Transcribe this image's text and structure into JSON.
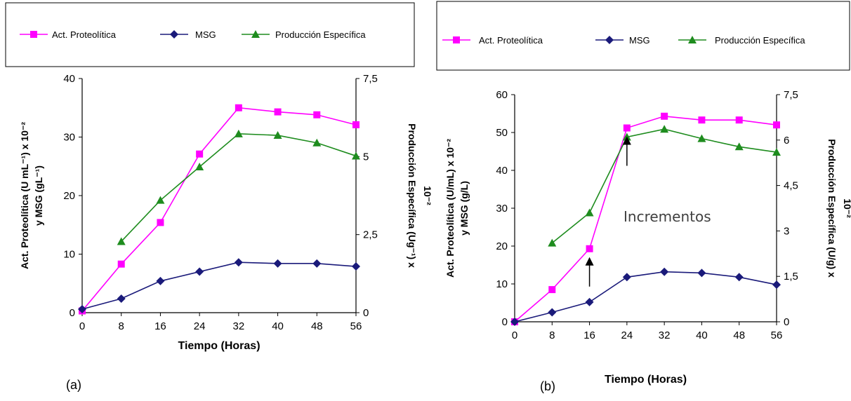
{
  "colors": {
    "act": "#ff00ff",
    "msg": "#1a1a7a",
    "prod": "#1e8c1e",
    "axis": "#000000"
  },
  "chart_data": [
    {
      "type": "line",
      "panel_label": "(a)",
      "xlabel": "Tiempo (Horas)",
      "ylabel": "Act. Proteolítica (U mL⁻¹) x 10⁻²  y MSG (gL⁻¹)",
      "y2label": "Producción Específica (Ug⁻¹) x 10⁻²",
      "x_ticks": [
        "0",
        "8",
        "16",
        "24",
        "32",
        "40",
        "48",
        "56"
      ],
      "xlim": [
        0,
        56
      ],
      "ylim": [
        0,
        40
      ],
      "y_ticks": [
        "0",
        "10",
        "20",
        "30",
        "40"
      ],
      "y2lim": [
        0,
        7.5
      ],
      "y2_ticks": [
        "0",
        "2,5",
        "5",
        "7,5"
      ],
      "legend": [
        "Act. Proteolítica",
        "MSG",
        "Producción Específica"
      ],
      "series": [
        {
          "name": "Act. Proteolítica",
          "marker": "square",
          "axis": "left",
          "x": [
            0,
            8,
            16,
            24,
            32,
            40,
            48,
            56
          ],
          "y": [
            0.3,
            8.3,
            15.4,
            27.1,
            35,
            34.3,
            33.8,
            32.1
          ]
        },
        {
          "name": "MSG",
          "marker": "diamond",
          "axis": "left",
          "x": [
            0,
            8,
            16,
            24,
            32,
            40,
            48,
            56
          ],
          "y": [
            0.6,
            2.4,
            5.4,
            7,
            8.6,
            8.4,
            8.4,
            7.9
          ]
        },
        {
          "name": "Producción Específica",
          "marker": "triangle",
          "axis": "right",
          "x": [
            8,
            16,
            24,
            32,
            40,
            48,
            56
          ],
          "y": [
            2.28,
            3.6,
            4.67,
            5.73,
            5.68,
            5.44,
            5.02
          ]
        }
      ]
    },
    {
      "type": "line",
      "panel_label": "(b)",
      "xlabel": "Tiempo (Horas)",
      "ylabel": "Act. Proteolítica (U/mL) x 10⁻²  y MSG (g/L)",
      "y2label": "Producción Específica (U/g) x 10⁻²",
      "x_ticks": [
        "0",
        "8",
        "16",
        "24",
        "32",
        "40",
        "48",
        "56"
      ],
      "xlim": [
        0,
        56
      ],
      "ylim": [
        0,
        60
      ],
      "y_ticks": [
        "0",
        "10",
        "20",
        "30",
        "40",
        "50",
        "60"
      ],
      "y2lim": [
        0,
        7.5
      ],
      "y2_ticks": [
        "0",
        "1,5",
        "3",
        "4,5",
        "6",
        "7,5"
      ],
      "legend": [
        "Act. Proteolítica",
        "MSG",
        "Producción Específica"
      ],
      "annotation": "Incrementos",
      "arrows_at_x": [
        16,
        24
      ],
      "series": [
        {
          "name": "Act. Proteolítica",
          "marker": "square",
          "axis": "left",
          "x": [
            0,
            8,
            16,
            24,
            32,
            40,
            48,
            56
          ],
          "y": [
            0,
            8.5,
            19.3,
            51.2,
            54.3,
            53.3,
            53.3,
            52
          ]
        },
        {
          "name": "MSG",
          "marker": "diamond",
          "axis": "left",
          "x": [
            0,
            8,
            16,
            24,
            32,
            40,
            48,
            56
          ],
          "y": [
            0,
            2.5,
            5.2,
            11.8,
            13.2,
            12.9,
            11.8,
            9.8
          ]
        },
        {
          "name": "Producción Específica",
          "marker": "triangle",
          "axis": "right",
          "x": [
            8,
            16,
            24,
            32,
            40,
            48,
            56
          ],
          "y": [
            2.6,
            3.6,
            6.1,
            6.36,
            6.05,
            5.78,
            5.6
          ]
        }
      ]
    }
  ]
}
